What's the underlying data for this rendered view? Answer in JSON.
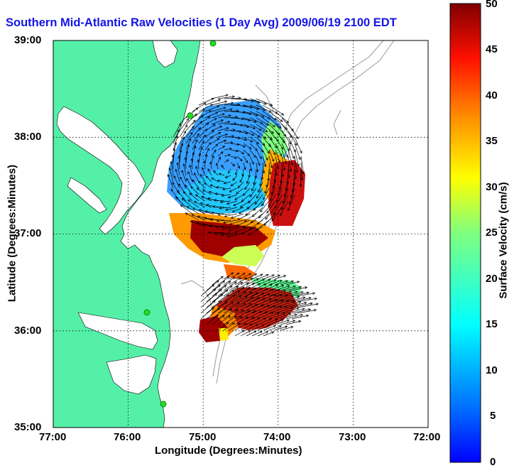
{
  "title": "Southern Mid-Atlantic Raw Velocities (1 Day Avg) 2009/06/19 2100 EDT",
  "map": {
    "xlabel": "Longitude (Degrees:Minutes)",
    "ylabel": "Latitude (Degrees:Minutes)",
    "x_ticks": [
      "77:00",
      "76:00",
      "75:00",
      "74:00",
      "73:00",
      "72:00"
    ],
    "y_ticks": [
      "39:00",
      "38:00",
      "37:00",
      "36:00",
      "35:00"
    ],
    "lon_range": [
      -77,
      -72
    ],
    "lat_range": [
      35,
      39
    ],
    "grid": "dotted",
    "land_color": "#55f0a8",
    "water_color": "#ffffff",
    "bathymetry_color": "#999999",
    "station_color": "#22dd22",
    "arrow_color": "#000000"
  },
  "colorbar": {
    "label": "Surface Velocity (cm/s)",
    "ticks": [
      "50",
      "45",
      "40",
      "35",
      "30",
      "25",
      "20",
      "15",
      "10",
      "5",
      "0"
    ],
    "range": [
      0,
      50
    ],
    "colormap": "jet"
  }
}
